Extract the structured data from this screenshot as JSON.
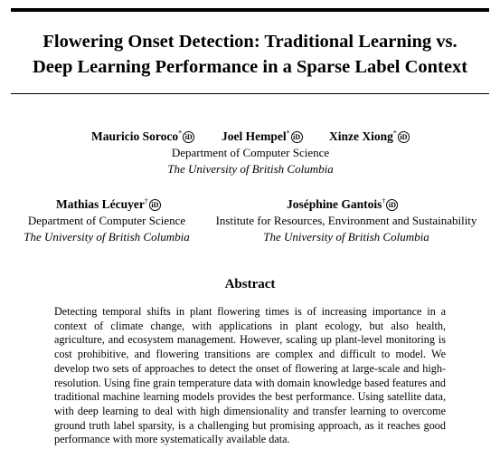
{
  "paper": {
    "title_lines": [
      "Flowering Onset Detection: Traditional Learning vs.",
      "Deep Learning Performance in a Sparse Label Context"
    ],
    "orcid_glyph": "iD",
    "authors": [
      {
        "name": "Mauricio Soroco",
        "mark": "*"
      },
      {
        "name": "Joel Hempel",
        "mark": "*"
      },
      {
        "name": "Xinze Xiong",
        "mark": "*"
      },
      {
        "name": "Mathias Lécuyer",
        "mark": "†"
      },
      {
        "name": "Joséphine Gantois",
        "mark": "†"
      }
    ],
    "affiliation_1": {
      "dept": "Department of Computer Science",
      "inst": "The University of British Columbia"
    },
    "affiliation_2": {
      "dept": "Department of Computer Science",
      "inst": "The University of British Columbia"
    },
    "affiliation_3": {
      "dept": "Institute for Resources, Environment and Sustainability",
      "inst": "The University of British Columbia"
    },
    "abstract_heading": "Abstract",
    "abstract_text": "Detecting temporal shifts in plant flowering times is of increasing importance in a context of climate change, with applications in plant ecology, but also health, agriculture, and ecosystem management. However, scaling up plant-level monitoring is cost prohibitive, and flowering transitions are complex and difficult to model. We develop two sets of approaches to detect the onset of flowering at large-scale and high-resolution. Using fine grain temperature data with domain knowledge based features and traditional machine learning models provides the best performance. Using satellite data, with deep learning to deal with high dimensionality and transfer learning to overcome ground truth label sparsity, is a challenging but promising approach, as it reaches good performance with more systematically available data."
  }
}
